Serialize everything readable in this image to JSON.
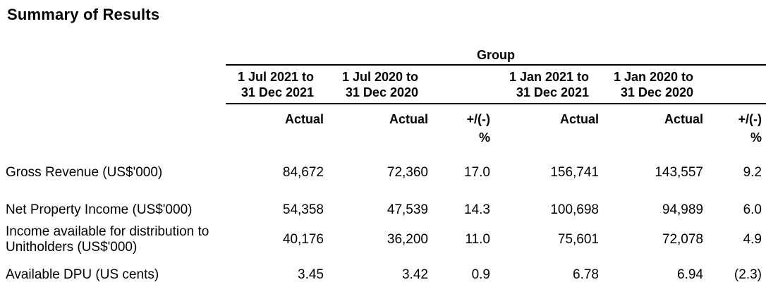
{
  "title": "Summary of Results",
  "colors": {
    "text": "#000000",
    "background": "#ffffff",
    "rule": "#000000"
  },
  "table": {
    "group_header": "Group",
    "periods": [
      {
        "line1": "1 Jul 2021 to",
        "line2": "31 Dec 2021"
      },
      {
        "line1": "1 Jul 2020 to",
        "line2": "31 Dec 2020"
      },
      {
        "line1": "1 Jan 2021 to",
        "line2": "31 Dec 2021"
      },
      {
        "line1": "1 Jan 2020 to",
        "line2": "31 Dec 2020"
      }
    ],
    "col_headers": {
      "actual": "Actual",
      "change": "+/(-)",
      "percent_sign": "%"
    },
    "rows": [
      {
        "label": "Gross Revenue (US$'000)",
        "values": [
          "84,672",
          "72,360",
          "17.0",
          "156,741",
          "143,557",
          "9.2"
        ]
      },
      {
        "label": "Net Property Income (US$'000)",
        "values": [
          "54,358",
          "47,539",
          "14.3",
          "100,698",
          "94,989",
          "6.0"
        ]
      },
      {
        "label": "Income available for distribution to Unitholders (US$'000)",
        "values": [
          "40,176",
          "36,200",
          "11.0",
          "75,601",
          "72,078",
          "4.9"
        ]
      },
      {
        "label": "Available DPU (US cents)",
        "values": [
          "3.45",
          "3.42",
          "0.9",
          "6.78",
          "6.94",
          "(2.3)"
        ]
      }
    ]
  }
}
